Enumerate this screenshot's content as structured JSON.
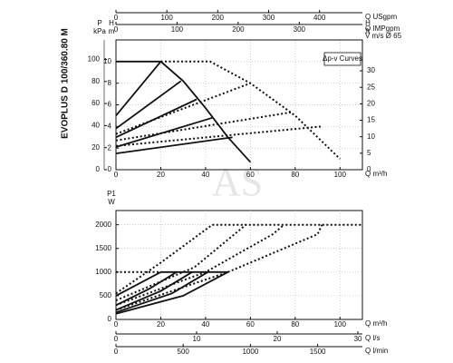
{
  "title": "EVOPLUS D 100/360.80 M",
  "watermark": "AS",
  "color": "#111111",
  "grid_color": "#bbbbbb",
  "charts": [
    {
      "type": "line",
      "legend": "Δp-v Curves",
      "grid": true,
      "x_axes": [
        {
          "label": "Q m³/h",
          "lim": [
            0,
            110
          ],
          "ticks": [
            0,
            20,
            40,
            60,
            80,
            100
          ]
        },
        {
          "label": "Q USgpm",
          "lim": [
            0,
            484.3
          ],
          "ticks": [
            0,
            100,
            200,
            300,
            400
          ]
        },
        {
          "label": "Q IMPgpm",
          "lim": [
            0,
            403.3
          ],
          "ticks": [
            0,
            100,
            200,
            300
          ]
        },
        {
          "label": "V m/s Ø 65",
          "lim": [
            0,
            9.2
          ],
          "ticks": []
        }
      ],
      "y_axes": [
        {
          "label": "H",
          "unit": "m",
          "lim": [
            0,
            12
          ],
          "ticks": [
            0,
            2,
            4,
            6,
            8,
            10
          ]
        },
        {
          "label": "P",
          "unit": "kPa",
          "lim": [
            0,
            117.7
          ],
          "ticks": [
            0,
            20,
            40,
            60,
            80,
            100
          ]
        },
        {
          "label": "H",
          "unit": "ft",
          "lim": [
            0,
            39.37
          ],
          "ticks": [
            0,
            5,
            10,
            15,
            20,
            25,
            30
          ]
        }
      ],
      "series": [
        {
          "style": "solid",
          "x": [
            0,
            20,
            30,
            40,
            50,
            60
          ],
          "values": [
            10,
            10,
            8.2,
            5.7,
            3,
            0.7
          ]
        },
        {
          "style": "solid",
          "x": [
            0,
            20
          ],
          "values": [
            5,
            10
          ]
        },
        {
          "style": "solid",
          "x": [
            0,
            29
          ],
          "values": [
            3.8,
            8.2
          ]
        },
        {
          "style": "solid",
          "x": [
            0,
            36
          ],
          "values": [
            3,
            6.5
          ]
        },
        {
          "style": "solid",
          "x": [
            0,
            43
          ],
          "values": [
            2.1,
            4.8
          ]
        },
        {
          "style": "solid",
          "x": [
            0,
            52
          ],
          "values": [
            1.5,
            3
          ]
        },
        {
          "style": "dotted",
          "x": [
            20,
            42,
            60,
            80,
            100
          ],
          "values": [
            10,
            10,
            8,
            5,
            1
          ]
        },
        {
          "style": "dotted",
          "x": [
            0,
            60
          ],
          "values": [
            3.3,
            8
          ]
        },
        {
          "style": "dotted",
          "x": [
            0,
            78
          ],
          "values": [
            2.7,
            5.3
          ]
        },
        {
          "style": "dotted",
          "x": [
            0,
            92
          ],
          "values": [
            2.2,
            4
          ]
        }
      ]
    },
    {
      "type": "line",
      "grid": true,
      "x_axes": [
        {
          "label": "Q m³/h",
          "lim": [
            0,
            110
          ],
          "ticks": [
            0,
            20,
            40,
            60,
            80,
            100
          ]
        },
        {
          "label": "Q l/s",
          "lim": [
            0,
            30.56
          ],
          "ticks": [
            0,
            10,
            20,
            30
          ]
        },
        {
          "label": "Q l/min",
          "lim": [
            0,
            1833
          ],
          "ticks": [
            0,
            500,
            1000,
            1500
          ]
        }
      ],
      "y_axes": [
        {
          "label": "P1",
          "unit": "W",
          "lim": [
            0,
            2300
          ],
          "ticks": [
            0,
            500,
            1000,
            1500,
            2000
          ]
        }
      ],
      "series": [
        {
          "style": "solid",
          "x": [
            20,
            50
          ],
          "values": [
            1000,
            1000
          ]
        },
        {
          "style": "solid",
          "x": [
            0,
            20
          ],
          "values": [
            500,
            1000
          ]
        },
        {
          "style": "solid",
          "x": [
            0,
            15,
            27
          ],
          "values": [
            300,
            650,
            1000
          ]
        },
        {
          "style": "solid",
          "x": [
            0,
            20,
            34
          ],
          "values": [
            200,
            600,
            1000
          ]
        },
        {
          "style": "solid",
          "x": [
            0,
            25,
            41
          ],
          "values": [
            150,
            550,
            1000
          ]
        },
        {
          "style": "solid",
          "x": [
            0,
            30,
            50
          ],
          "values": [
            120,
            500,
            1000
          ]
        },
        {
          "style": "dotted",
          "x": [
            0,
            20
          ],
          "values": [
            1000,
            1000
          ]
        },
        {
          "style": "dotted",
          "x": [
            43,
            110
          ],
          "values": [
            2000,
            2000
          ]
        },
        {
          "style": "dotted",
          "x": [
            0,
            20,
            43
          ],
          "values": [
            550,
            1200,
            2000
          ]
        },
        {
          "style": "dotted",
          "x": [
            0,
            35,
            58
          ],
          "values": [
            400,
            1100,
            2000
          ]
        },
        {
          "style": "dotted",
          "x": [
            0,
            40,
            70,
            75
          ],
          "values": [
            300,
            1000,
            1800,
            2000
          ]
        },
        {
          "style": "dotted",
          "x": [
            0,
            50,
            90,
            92
          ],
          "values": [
            200,
            1000,
            1800,
            2000
          ]
        }
      ]
    }
  ]
}
